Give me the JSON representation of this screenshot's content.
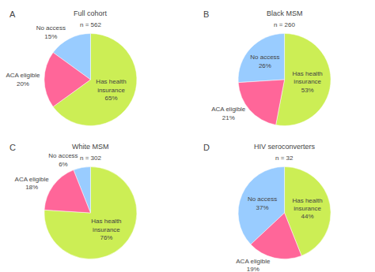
{
  "chart_data": [
    {
      "type": "pie",
      "title": "Full cohort",
      "subtitle": "n = 562",
      "annotations": [
        "A"
      ],
      "categories": [
        "Has health\ninsurance",
        "No access",
        "ACA eligible"
      ],
      "values": [
        65,
        15,
        20
      ],
      "value_labels": [
        "65%",
        "15%",
        "20%"
      ],
      "colors": [
        "#ccee55",
        "#99ccff",
        "#ff6699"
      ],
      "data_labels": true
    },
    {
      "type": "pie",
      "title": "Black MSM",
      "subtitle": "n = 260",
      "annotations": [
        "B"
      ],
      "categories": [
        "Has health\ninsurance",
        "No access",
        "ACA eligible"
      ],
      "values": [
        53,
        26,
        21
      ],
      "value_labels": [
        "53%",
        "26%",
        "21%"
      ],
      "colors": [
        "#ccee55",
        "#99ccff",
        "#ff6699"
      ],
      "data_labels": true
    },
    {
      "type": "pie",
      "title": "White MSM",
      "subtitle": "n = 302",
      "annotations": [
        "C"
      ],
      "categories": [
        "Has health\ninsurance",
        "No access",
        "ACA eligible"
      ],
      "values": [
        76,
        6,
        18
      ],
      "value_labels": [
        "76%",
        "6%",
        "18%"
      ],
      "colors": [
        "#ccee55",
        "#99ccff",
        "#ff6699"
      ],
      "data_labels": true
    },
    {
      "type": "pie",
      "title": "HIV seroconverters",
      "subtitle": "n = 32",
      "annotations": [
        "D"
      ],
      "categories": [
        "Has health\ninsurance",
        "No access",
        "ACA eligible"
      ],
      "values": [
        44,
        37,
        19
      ],
      "value_labels": [
        "44%",
        "37%",
        "19%"
      ],
      "colors": [
        "#ccee55",
        "#99ccff",
        "#ff6699"
      ],
      "data_labels": true
    }
  ]
}
